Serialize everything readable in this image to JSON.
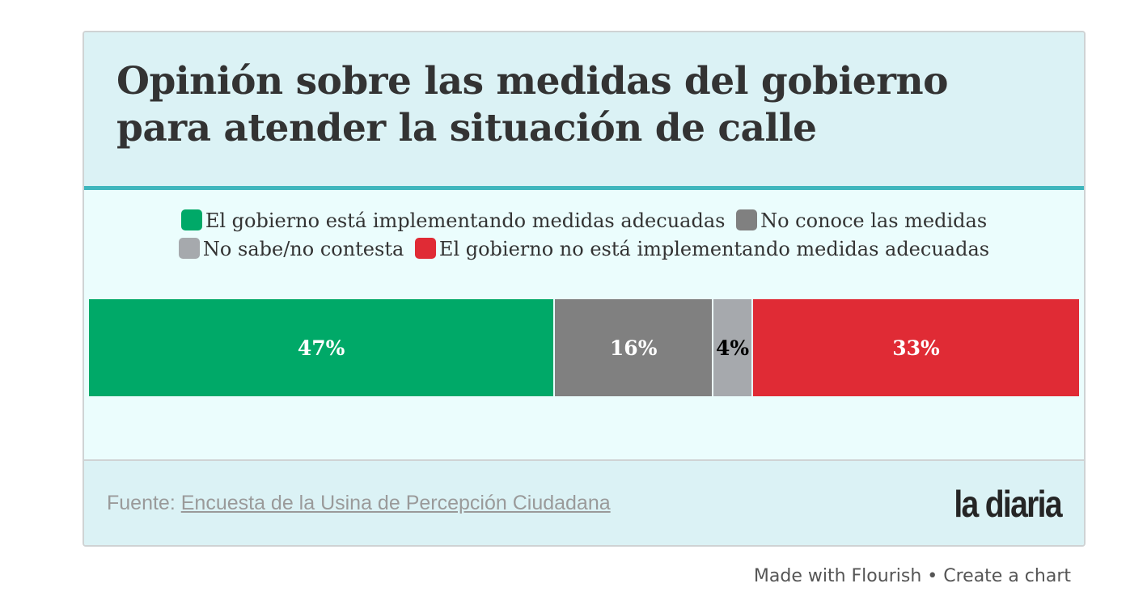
{
  "header": {
    "title": "Opinión sobre las medidas del gobierno para atender la situación de calle"
  },
  "legend": {
    "items": [
      {
        "label": "El gobierno está implementando medidas adecuadas",
        "color": "#00a968"
      },
      {
        "label": "No conoce las medidas",
        "color": "#808080"
      },
      {
        "label": "No sabe/no contesta",
        "color": "#a6a9ad"
      },
      {
        "label": "El gobierno no está implementando medidas adecuadas",
        "color": "#e02b35"
      }
    ]
  },
  "chart_data": {
    "type": "bar",
    "orientation": "horizontal-stacked",
    "title": "Opinión sobre las medidas del gobierno para atender la situación de calle",
    "categories": [
      ""
    ],
    "series": [
      {
        "name": "El gobierno está implementando medidas adecuadas",
        "values": [
          47
        ],
        "label": "47%",
        "color": "#00a968",
        "label_color": "#ffffff"
      },
      {
        "name": "No conoce las medidas",
        "values": [
          16
        ],
        "label": "16%",
        "color": "#808080",
        "label_color": "#ffffff"
      },
      {
        "name": "No sabe/no contesta",
        "values": [
          4
        ],
        "label": "4%",
        "color": "#a6a9ad",
        "label_color": "#000000"
      },
      {
        "name": "El gobierno no está implementando medidas adecuadas",
        "values": [
          33
        ],
        "label": "33%",
        "color": "#e02b35",
        "label_color": "#ffffff"
      }
    ],
    "xlim": [
      0,
      100
    ],
    "legend": "top",
    "grid": false
  },
  "footer": {
    "source_prefix": "Fuente: ",
    "source_link": "Encuesta de la Usina de Percepción Ciudadana",
    "logo": "la diaria"
  },
  "attribution": {
    "made_with": "Made with Flourish",
    "separator": " • ",
    "create": "Create a chart"
  }
}
